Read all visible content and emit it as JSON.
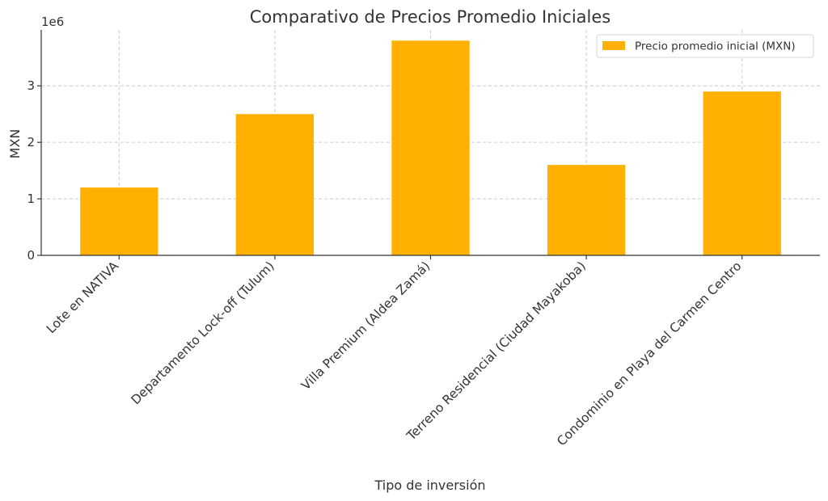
{
  "chart_data": {
    "type": "bar",
    "title": "Comparativo de Precios Promedio Iniciales",
    "xlabel": "Tipo de inversión",
    "ylabel": "MXN",
    "scale_label": "1e6",
    "categories": [
      "Lote en NATIVA",
      "Departamento Lock-off (Tulum)",
      "Villa Premium (Aldea Zamá)",
      "Terreno Residencial (Ciudad Mayakoba)",
      "Condominio en Playa del Carmen Centro"
    ],
    "series": [
      {
        "name": "Precio promedio inicial (MXN)",
        "values": [
          1200000,
          2500000,
          3800000,
          1600000,
          2900000
        ],
        "color": "#ffb000"
      }
    ],
    "ylim": [
      0,
      3990000
    ],
    "yticks": [
      0,
      1000000,
      2000000,
      3000000
    ],
    "ytick_labels": [
      "0",
      "1",
      "2",
      "3"
    ],
    "grid": true,
    "legend_position": "top-right"
  }
}
